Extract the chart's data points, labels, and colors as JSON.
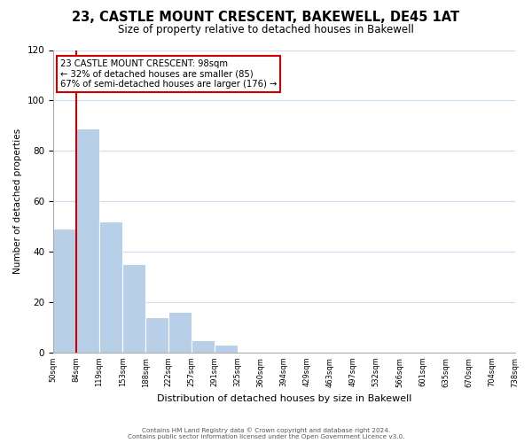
{
  "title": "23, CASTLE MOUNT CRESCENT, BAKEWELL, DE45 1AT",
  "subtitle": "Size of property relative to detached houses in Bakewell",
  "xlabel": "Distribution of detached houses by size in Bakewell",
  "ylabel": "Number of detached properties",
  "bar_values": [
    49,
    89,
    52,
    35,
    14,
    16,
    5,
    3,
    0,
    0,
    0,
    0,
    0,
    0,
    0,
    0,
    0,
    0,
    0,
    0
  ],
  "bin_labels": [
    "50sqm",
    "84sqm",
    "119sqm",
    "153sqm",
    "188sqm",
    "222sqm",
    "257sqm",
    "291sqm",
    "325sqm",
    "360sqm",
    "394sqm",
    "429sqm",
    "463sqm",
    "497sqm",
    "532sqm",
    "566sqm",
    "601sqm",
    "635sqm",
    "670sqm",
    "704sqm",
    "738sqm"
  ],
  "bar_color": "#b8cfe8",
  "vline_color": "#cc0000",
  "vline_x_index": 1,
  "annotation_text_line1": "23 CASTLE MOUNT CRESCENT: 98sqm",
  "annotation_text_line2": "← 32% of detached houses are smaller (85)",
  "annotation_text_line3": "67% of semi-detached houses are larger (176) →",
  "ylim": [
    0,
    120
  ],
  "yticks": [
    0,
    20,
    40,
    60,
    80,
    100,
    120
  ],
  "grid_color": "#ccddee",
  "background_color": "#ffffff",
  "footer1": "Contains HM Land Registry data © Crown copyright and database right 2024.",
  "footer2": "Contains public sector information licensed under the Open Government Licence v3.0."
}
